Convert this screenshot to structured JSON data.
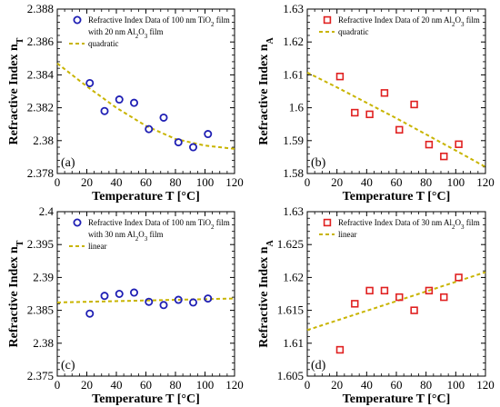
{
  "colors": {
    "marker_blue": "#1f1fb4",
    "marker_red": "#e02020",
    "fit_line": "#c8b400",
    "axis": "#000000"
  },
  "chart_data": [
    {
      "type": "scatter",
      "panel_label": "(a)",
      "xlabel": "Temperature T [°C]",
      "ylabel": "Refractive Index n",
      "ylabel_sub": "T",
      "xlim": [
        0,
        120
      ],
      "ylim": [
        2.378,
        2.388
      ],
      "xticks": [
        "0",
        "20",
        "40",
        "60",
        "80",
        "100",
        "120"
      ],
      "yticks": [
        "2.378",
        "2.38",
        "2.382",
        "2.384",
        "2.386",
        "2.388"
      ],
      "marker": "circle",
      "legend_position": "top-right",
      "series": [
        {
          "name": "Refractive Index Data of 100 nm TiO2 film with 20 nm Al2O3 film",
          "legend_lines": [
            [
              {
                "t": "Refractive Index Data of 100 nm TiO"
              },
              {
                "t": "2",
                "sub": true
              },
              {
                "t": " film"
              }
            ],
            [
              {
                "t": "with 20 nm Al"
              },
              {
                "t": "2",
                "sub": true
              },
              {
                "t": "O"
              },
              {
                "t": "3",
                "sub": true
              },
              {
                "t": " film"
              }
            ]
          ],
          "x": [
            22,
            32,
            42,
            52,
            62,
            72,
            82,
            92,
            102
          ],
          "y": [
            2.3835,
            2.3818,
            2.3825,
            2.3823,
            2.3807,
            2.3814,
            2.3799,
            2.3796,
            2.3804
          ]
        },
        {
          "name": "quadratic",
          "legend_lines": [
            [
              {
                "t": "quadratic"
              }
            ]
          ],
          "fit": "quadratic",
          "x": [
            0,
            20,
            40,
            60,
            80,
            100,
            120
          ],
          "y": [
            2.3847,
            2.3833,
            2.382,
            2.3809,
            2.3801,
            2.3797,
            2.3795
          ]
        }
      ]
    },
    {
      "type": "scatter",
      "panel_label": "(b)",
      "xlabel": "Temperature T [°C]",
      "ylabel": "Refractive Index n",
      "ylabel_sub": "A",
      "xlim": [
        0,
        120
      ],
      "ylim": [
        1.58,
        1.63
      ],
      "xticks": [
        "0",
        "20",
        "40",
        "60",
        "80",
        "100",
        "120"
      ],
      "yticks": [
        "1.58",
        "1.59",
        "1.6",
        "1.61",
        "1.62",
        "1.63"
      ],
      "marker": "square",
      "legend_position": "top-right",
      "series": [
        {
          "name": "Refractive Index Data of 20 nm Al2O3 film",
          "legend_lines": [
            [
              {
                "t": "Refractive Index Data of 20 nm Al"
              },
              {
                "t": "2",
                "sub": true
              },
              {
                "t": "O"
              },
              {
                "t": "3",
                "sub": true
              },
              {
                "t": " film"
              }
            ]
          ],
          "x": [
            22,
            32,
            42,
            52,
            62,
            72,
            82,
            92,
            102
          ],
          "y": [
            1.6095,
            1.5985,
            1.598,
            1.6045,
            1.5933,
            1.601,
            1.5888,
            1.5852,
            1.5889
          ]
        },
        {
          "name": "quadratic",
          "legend_lines": [
            [
              {
                "t": "quadratic"
              }
            ]
          ],
          "fit": "quadratic",
          "x": [
            0,
            20,
            40,
            60,
            80,
            100,
            120
          ],
          "y": [
            1.6107,
            1.6062,
            1.6015,
            1.5968,
            1.5919,
            1.587,
            1.582
          ]
        }
      ]
    },
    {
      "type": "scatter",
      "panel_label": "(c)",
      "xlabel": "Temperature T [°C]",
      "ylabel": "Refractive Index n",
      "ylabel_sub": "T",
      "xlim": [
        0,
        120
      ],
      "ylim": [
        2.375,
        2.4
      ],
      "xticks": [
        "0",
        "20",
        "40",
        "60",
        "80",
        "100",
        "120"
      ],
      "yticks": [
        "2.375",
        "2.38",
        "2.385",
        "2.39",
        "2.395",
        "2.4"
      ],
      "marker": "circle",
      "legend_position": "top-right",
      "series": [
        {
          "name": "Refractive Index Data of 100 nm TiO2 film with 30 nm Al2O3 film",
          "legend_lines": [
            [
              {
                "t": "Refractive Index Data of 100 nm TiO"
              },
              {
                "t": "2",
                "sub": true
              },
              {
                "t": " film"
              }
            ],
            [
              {
                "t": "with 30 nm Al"
              },
              {
                "t": "2",
                "sub": true
              },
              {
                "t": "O"
              },
              {
                "t": "3",
                "sub": true
              },
              {
                "t": " film"
              }
            ]
          ],
          "x": [
            22,
            32,
            42,
            52,
            62,
            72,
            82,
            92,
            102
          ],
          "y": [
            2.3845,
            2.3872,
            2.3875,
            2.3877,
            2.3863,
            2.3858,
            2.3866,
            2.3862,
            2.3868
          ]
        },
        {
          "name": "linear",
          "legend_lines": [
            [
              {
                "t": "linear"
              }
            ]
          ],
          "fit": "linear",
          "x": [
            0,
            120
          ],
          "y": [
            2.3862,
            2.3868
          ]
        }
      ]
    },
    {
      "type": "scatter",
      "panel_label": "(d)",
      "xlabel": "Temperature T [°C]",
      "ylabel": "Refractive Index n",
      "ylabel_sub": "A",
      "xlim": [
        0,
        120
      ],
      "ylim": [
        1.605,
        1.63
      ],
      "xticks": [
        "0",
        "20",
        "40",
        "60",
        "80",
        "100",
        "120"
      ],
      "yticks": [
        "1.605",
        "1.61",
        "1.615",
        "1.62",
        "1.625",
        "1.63"
      ],
      "marker": "square",
      "legend_position": "top-right",
      "series": [
        {
          "name": "Refractive Index Data of 30 nm Al2O3 film",
          "legend_lines": [
            [
              {
                "t": "Refractive Index Data of 30 nm Al"
              },
              {
                "t": "2",
                "sub": true
              },
              {
                "t": "O"
              },
              {
                "t": "3",
                "sub": true
              },
              {
                "t": " film"
              }
            ]
          ],
          "x": [
            22,
            32,
            42,
            52,
            62,
            72,
            82,
            92,
            102
          ],
          "y": [
            1.609,
            1.616,
            1.618,
            1.618,
            1.617,
            1.615,
            1.618,
            1.617,
            1.62
          ]
        },
        {
          "name": "linear",
          "legend_lines": [
            [
              {
                "t": "linear"
              }
            ]
          ],
          "fit": "linear",
          "x": [
            0,
            120
          ],
          "y": [
            1.612,
            1.6208
          ]
        }
      ]
    }
  ]
}
